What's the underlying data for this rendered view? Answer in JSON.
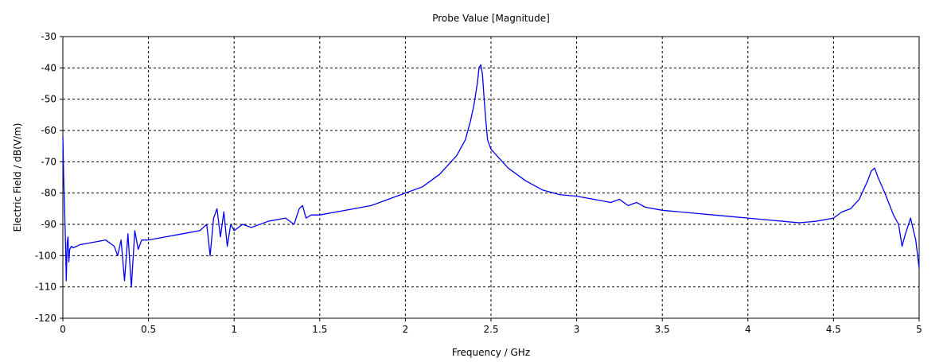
{
  "chart_data": {
    "type": "line",
    "title": "Probe Value [Magnitude]",
    "xlabel": "Frequency / GHz",
    "ylabel": "Electric Field / dB(V/m)",
    "xlim": [
      0,
      5
    ],
    "ylim": [
      -120,
      -30
    ],
    "xticks": [
      0,
      0.5,
      1,
      1.5,
      2,
      2.5,
      3,
      3.5,
      4,
      4.5,
      5
    ],
    "xtick_labels": [
      "0",
      "0.5",
      "1",
      "1.5",
      "2",
      "2.5",
      "3",
      "3.5",
      "4",
      "4.5",
      "5"
    ],
    "yticks": [
      -30,
      -40,
      -50,
      -60,
      -70,
      -80,
      -90,
      -100,
      -110,
      -120
    ],
    "ytick_labels": [
      "-30",
      "-40",
      "-50",
      "-60",
      "-70",
      "-80",
      "-90",
      "-100",
      "-110",
      "-120"
    ],
    "grid": true,
    "series": [
      {
        "color": "#0000ee",
        "x": [
          0.0,
          0.005,
          0.01,
          0.015,
          0.02,
          0.025,
          0.03,
          0.035,
          0.04,
          0.05,
          0.06,
          0.08,
          0.1,
          0.15,
          0.2,
          0.25,
          0.3,
          0.32,
          0.34,
          0.36,
          0.38,
          0.4,
          0.42,
          0.44,
          0.46,
          0.5,
          0.6,
          0.7,
          0.8,
          0.84,
          0.86,
          0.88,
          0.9,
          0.92,
          0.94,
          0.96,
          0.98,
          1.0,
          1.05,
          1.1,
          1.2,
          1.3,
          1.35,
          1.38,
          1.4,
          1.42,
          1.45,
          1.5,
          1.6,
          1.7,
          1.8,
          1.9,
          2.0,
          2.1,
          2.2,
          2.25,
          2.3,
          2.35,
          2.38,
          2.4,
          2.42,
          2.43,
          2.44,
          2.45,
          2.46,
          2.47,
          2.48,
          2.5,
          2.55,
          2.6,
          2.7,
          2.8,
          2.9,
          3.0,
          3.1,
          3.2,
          3.25,
          3.3,
          3.35,
          3.4,
          3.5,
          3.6,
          3.7,
          3.8,
          3.9,
          4.0,
          4.1,
          4.2,
          4.3,
          4.4,
          4.5,
          4.55,
          4.6,
          4.65,
          4.7,
          4.72,
          4.74,
          4.76,
          4.8,
          4.85,
          4.88,
          4.9,
          4.92,
          4.95,
          4.98,
          5.0
        ],
        "y": [
          -62,
          -76,
          -85,
          -95,
          -108,
          -96,
          -94,
          -102,
          -98,
          -97,
          -97.5,
          -97,
          -96.5,
          -96,
          -95.5,
          -95,
          -97,
          -100,
          -95,
          -108,
          -93,
          -110,
          -92,
          -98,
          -95,
          -95,
          -94,
          -93,
          -92,
          -90,
          -100,
          -88,
          -85,
          -94,
          -86,
          -97,
          -90,
          -92,
          -90,
          -91,
          -89,
          -88,
          -90,
          -85,
          -84,
          -88,
          -87,
          -87,
          -86,
          -85,
          -84,
          -82,
          -80,
          -78,
          -74,
          -71,
          -68,
          -63,
          -57,
          -52,
          -45,
          -40,
          -39,
          -42,
          -50,
          -57,
          -63,
          -66,
          -69,
          -72,
          -76,
          -79,
          -80.5,
          -81,
          -82,
          -83,
          -82,
          -84,
          -83,
          -84.5,
          -85.5,
          -86,
          -86.5,
          -87,
          -87.5,
          -88,
          -88.5,
          -89,
          -89.5,
          -89,
          -88,
          -86,
          -85,
          -82,
          -76,
          -73,
          -72,
          -75,
          -80,
          -87,
          -90,
          -97,
          -93,
          -88,
          -95,
          -104
        ]
      }
    ]
  }
}
